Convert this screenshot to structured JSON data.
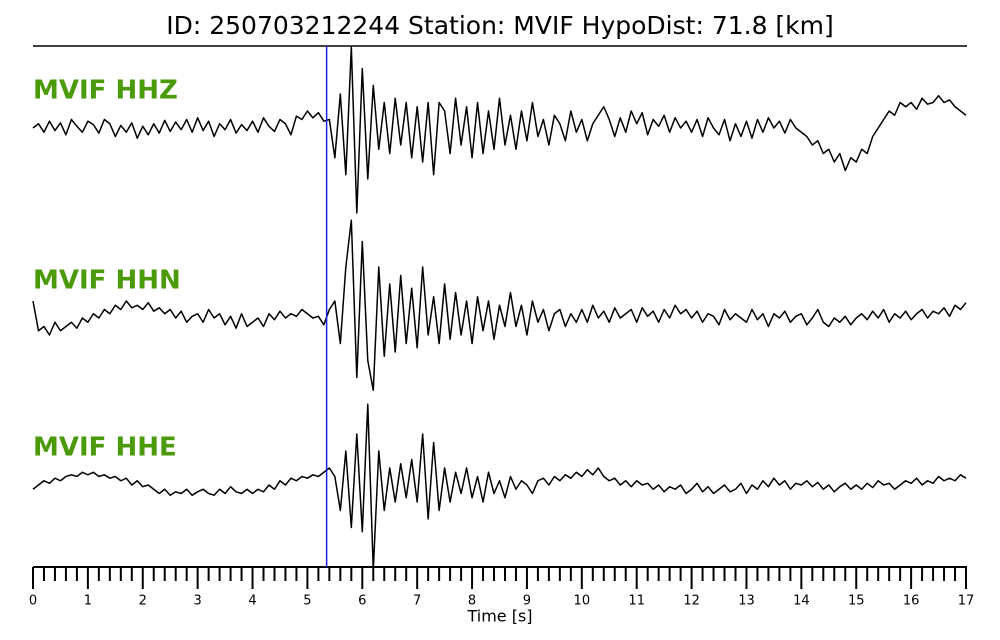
{
  "chart_data": {
    "type": "seismogram",
    "title": "ID: 250703212244   Station: MVIF   HypoDist:    71.8 [km]",
    "xlabel": "Time [s]",
    "xlim": [
      0,
      17
    ],
    "xticks": [
      0,
      1,
      2,
      3,
      4,
      5,
      6,
      7,
      8,
      9,
      10,
      11,
      12,
      13,
      14,
      15,
      16,
      17
    ],
    "xticks_minor": [
      0.2,
      0.4,
      0.6,
      0.8,
      1.2,
      1.4,
      1.6,
      1.8,
      2.2,
      2.4,
      2.6,
      2.8,
      3.2,
      3.4,
      3.6,
      3.8,
      4.2,
      4.4,
      4.6,
      4.8,
      5.2,
      5.4,
      5.6,
      5.8,
      6.2,
      6.4,
      6.6,
      6.8,
      7.2,
      7.4,
      7.6,
      7.8,
      8.2,
      8.4,
      8.6,
      8.8,
      9.2,
      9.4,
      9.6,
      9.8,
      10.2,
      10.4,
      10.6,
      10.8,
      11.2,
      11.4,
      11.6,
      11.8,
      12.2,
      12.4,
      12.6,
      12.8,
      13.2,
      13.4,
      13.6,
      13.8,
      14.2,
      14.4,
      14.6,
      14.8,
      15.2,
      15.4,
      15.6,
      15.8,
      16.2,
      16.4,
      16.6,
      16.8
    ],
    "ylim": [
      -1,
      1
    ],
    "vline": {
      "value": 5.35,
      "color": "#1f1fe0"
    },
    "label_color": "#4a9a0a",
    "x": [
      0,
      0.1,
      0.2,
      0.3,
      0.4,
      0.5,
      0.6,
      0.7,
      0.8,
      0.9,
      1,
      1.1,
      1.2,
      1.3,
      1.4,
      1.5,
      1.6,
      1.7,
      1.8,
      1.9,
      2,
      2.1,
      2.2,
      2.3,
      2.4,
      2.5,
      2.6,
      2.7,
      2.8,
      2.9,
      3,
      3.1,
      3.2,
      3.3,
      3.4,
      3.5,
      3.6,
      3.7,
      3.8,
      3.9,
      4,
      4.1,
      4.2,
      4.3,
      4.4,
      4.5,
      4.6,
      4.7,
      4.8,
      4.9,
      5,
      5.1,
      5.2,
      5.3,
      5.4,
      5.5,
      5.6,
      5.7,
      5.8,
      5.9,
      6,
      6.1,
      6.2,
      6.3,
      6.4,
      6.5,
      6.6,
      6.7,
      6.8,
      6.9,
      7,
      7.1,
      7.2,
      7.3,
      7.4,
      7.5,
      7.6,
      7.7,
      7.8,
      7.9,
      8,
      8.1,
      8.2,
      8.3,
      8.4,
      8.5,
      8.6,
      8.7,
      8.8,
      8.9,
      9,
      9.1,
      9.2,
      9.3,
      9.4,
      9.5,
      9.6,
      9.7,
      9.8,
      9.9,
      10,
      10.1,
      10.2,
      10.3,
      10.4,
      10.5,
      10.6,
      10.7,
      10.8,
      10.9,
      11,
      11.1,
      11.2,
      11.3,
      11.4,
      11.5,
      11.6,
      11.7,
      11.8,
      11.9,
      12,
      12.1,
      12.2,
      12.3,
      12.4,
      12.5,
      12.6,
      12.7,
      12.8,
      12.9,
      13,
      13.1,
      13.2,
      13.3,
      13.4,
      13.5,
      13.6,
      13.7,
      13.8,
      13.9,
      14,
      14.1,
      14.2,
      14.3,
      14.4,
      14.5,
      14.6,
      14.7,
      14.8,
      14.9,
      15,
      15.1,
      15.2,
      15.3,
      15.4,
      15.5,
      15.6,
      15.7,
      15.8,
      15.9,
      16,
      16.1,
      16.2,
      16.3,
      16.4,
      16.5,
      16.6,
      16.7,
      16.8,
      16.9,
      17
    ],
    "series": [
      {
        "name": "MVIF HHZ",
        "color": "#000000",
        "values": [
          0,
          0.05,
          -0.05,
          0.08,
          -0.03,
          0.06,
          -0.08,
          0.1,
          0.02,
          -0.05,
          0.08,
          0.04,
          -0.06,
          0.1,
          0.05,
          -0.1,
          0.03,
          -0.05,
          0.06,
          -0.12,
          0.02,
          -0.08,
          0.05,
          -0.06,
          0.09,
          -0.04,
          0.07,
          -0.02,
          0.1,
          -0.05,
          0.12,
          -0.03,
          0.08,
          -0.1,
          0.05,
          -0.02,
          0.1,
          -0.06,
          0.04,
          -0.03,
          0.08,
          -0.05,
          0.12,
          0.02,
          -0.04,
          0.1,
          0.05,
          -0.08,
          0.14,
          0.1,
          0.2,
          0.12,
          0.18,
          0.08,
          0.1,
          -0.35,
          0.4,
          -0.55,
          0.95,
          -1.0,
          0.7,
          -0.6,
          0.5,
          -0.25,
          0.3,
          -0.3,
          0.35,
          -0.2,
          0.3,
          -0.35,
          0.25,
          -0.4,
          0.3,
          -0.55,
          0.3,
          0.2,
          -0.3,
          0.35,
          -0.2,
          0.25,
          -0.35,
          0.3,
          -0.3,
          0.2,
          -0.25,
          0.35,
          -0.2,
          0.15,
          -0.25,
          0.2,
          -0.15,
          0.3,
          -0.1,
          0.1,
          -0.2,
          0.15,
          0.05,
          -0.15,
          0.2,
          -0.05,
          0.1,
          -0.15,
          0.05,
          0.15,
          0.25,
          0.1,
          -0.1,
          0.12,
          -0.05,
          0.2,
          0.05,
          0.18,
          -0.08,
          0.1,
          0.02,
          0.15,
          -0.05,
          0.12,
          0,
          0.08,
          -0.05,
          0.1,
          -0.1,
          0.12,
          0,
          -0.08,
          0.1,
          -0.15,
          0.05,
          -0.1,
          0.08,
          -0.12,
          0.1,
          -0.05,
          0.12,
          0,
          0.08,
          -0.06,
          0.1,
          0,
          -0.05,
          -0.1,
          -0.2,
          -0.15,
          -0.3,
          -0.25,
          -0.4,
          -0.3,
          -0.5,
          -0.35,
          -0.4,
          -0.25,
          -0.3,
          -0.1,
          0,
          0.1,
          0.2,
          0.15,
          0.3,
          0.25,
          0.3,
          0.22,
          0.35,
          0.28,
          0.3,
          0.38,
          0.3,
          0.33,
          0.25,
          0.2,
          0.15
        ]
      },
      {
        "name": "MVIF HHN",
        "color": "#000000",
        "values": [
          0.2,
          -0.15,
          -0.1,
          -0.2,
          -0.05,
          -0.15,
          -0.1,
          -0.05,
          -0.12,
          0,
          -0.05,
          0.05,
          0,
          0.1,
          0.05,
          0.15,
          0.1,
          0.2,
          0.12,
          0.15,
          0.1,
          0.18,
          0.08,
          0.12,
          0.05,
          0.1,
          0,
          0.08,
          -0.05,
          0.02,
          0.05,
          -0.05,
          0.1,
          0,
          0.05,
          -0.08,
          0.02,
          -0.12,
          0.05,
          -0.1,
          -0.05,
          0,
          -0.1,
          0.05,
          -0.02,
          0.08,
          0,
          0.05,
          0.02,
          0.1,
          0.05,
          0,
          0.02,
          -0.08,
          0.1,
          0.2,
          -0.3,
          0.6,
          1.15,
          -0.7,
          0.9,
          -0.5,
          -0.85,
          0.6,
          -0.45,
          0.4,
          -0.4,
          0.5,
          -0.3,
          0.35,
          -0.35,
          0.6,
          -0.2,
          0.25,
          -0.3,
          0.4,
          -0.25,
          0.3,
          -0.2,
          0.2,
          -0.3,
          0.25,
          -0.15,
          0.2,
          -0.25,
          0.15,
          -0.1,
          0.3,
          -0.1,
          0.15,
          -0.2,
          0.2,
          -0.05,
          0.1,
          -0.15,
          0.05,
          0.1,
          -0.1,
          0.05,
          -0.05,
          0.1,
          -0.05,
          0.15,
          0,
          0.08,
          -0.05,
          0.12,
          0,
          0.05,
          0.1,
          -0.05,
          0.12,
          0.02,
          0.08,
          -0.05,
          0.1,
          0,
          0.15,
          0.05,
          0.1,
          0,
          0.08,
          -0.05,
          0.05,
          0.02,
          -0.08,
          0.1,
          -0.02,
          0.05,
          0,
          -0.05,
          0.1,
          -0.02,
          0.05,
          -0.1,
          0.05,
          0,
          0.08,
          -0.05,
          0.02,
          0.05,
          -0.08,
          0,
          0.1,
          -0.05,
          -0.1,
          0,
          -0.05,
          0.02,
          -0.08,
          0,
          0.05,
          -0.02,
          0.08,
          0,
          0.1,
          -0.05,
          0.05,
          0,
          0.08,
          -0.02,
          0.05,
          0.1,
          0,
          0.08,
          0.05,
          0.12,
          0.02,
          0.15,
          0.1,
          0.18
        ]
      },
      {
        "name": "MVIF HHE",
        "color": "#000000",
        "values": [
          -0.05,
          0,
          0.05,
          0.02,
          0.08,
          0.05,
          0.1,
          0.12,
          0.1,
          0.15,
          0.12,
          0.15,
          0.1,
          0.12,
          0.08,
          0.1,
          0.05,
          0.08,
          0,
          0.05,
          -0.02,
          0,
          -0.05,
          -0.1,
          -0.05,
          -0.12,
          -0.08,
          -0.1,
          -0.05,
          -0.12,
          -0.08,
          -0.05,
          -0.1,
          -0.12,
          -0.05,
          -0.1,
          -0.02,
          -0.08,
          -0.1,
          -0.05,
          -0.1,
          -0.05,
          -0.08,
          0,
          -0.05,
          0.05,
          0,
          0.08,
          0.05,
          0.1,
          0.08,
          0.12,
          0.1,
          0.15,
          0.2,
          0.1,
          -0.3,
          0.4,
          -0.5,
          0.6,
          -0.55,
          0.95,
          -1.0,
          0.4,
          -0.3,
          0.2,
          -0.2,
          0.25,
          -0.15,
          0.3,
          -0.2,
          0.6,
          -0.4,
          0.5,
          -0.3,
          0.2,
          -0.2,
          0.15,
          -0.1,
          0.2,
          -0.15,
          0.1,
          -0.2,
          0.15,
          -0.1,
          0.05,
          -0.15,
          0.1,
          -0.05,
          0.05,
          0,
          -0.1,
          0.05,
          0.08,
          0,
          0.1,
          0.05,
          0.12,
          0.08,
          0.15,
          0.1,
          0.18,
          0.12,
          0.2,
          0.1,
          0.05,
          0.08,
          0,
          0.05,
          -0.02,
          0.05,
          0,
          0.02,
          -0.05,
          0,
          -0.08,
          -0.02,
          -0.05,
          0,
          -0.1,
          -0.05,
          0.02,
          -0.08,
          -0.02,
          -0.1,
          -0.05,
          0,
          -0.08,
          -0.05,
          0.02,
          -0.1,
          0,
          -0.05,
          0.05,
          -0.02,
          0.08,
          0,
          0.05,
          -0.05,
          0.02,
          0,
          0.05,
          -0.02,
          0.03,
          -0.05,
          0,
          -0.08,
          -0.02,
          0.02,
          -0.05,
          0,
          -0.05,
          0.02,
          -0.03,
          0.05,
          0,
          0.02,
          -0.05,
          0,
          0.05,
          0.02,
          0.08,
          0,
          0.05,
          0.02,
          0.1,
          0.05,
          0.08,
          0.05,
          0.12,
          0.08
        ]
      }
    ]
  }
}
